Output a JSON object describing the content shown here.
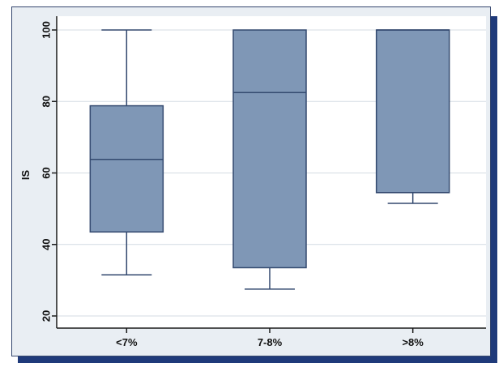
{
  "chart_data": {
    "type": "box",
    "title": "",
    "xlabel": "",
    "ylabel": "IS",
    "ylim": [
      20,
      100
    ],
    "yticks": [
      20,
      40,
      60,
      80,
      100
    ],
    "grid": true,
    "categories": [
      "<7%",
      "7-8%",
      ">8%"
    ],
    "boxes": [
      {
        "category": "<7%",
        "whisker_low": 31.5,
        "q1": 43.5,
        "median": 63.8,
        "q3": 78.8,
        "whisker_high": 100
      },
      {
        "category": "7-8%",
        "whisker_low": 27.5,
        "q1": 33.5,
        "median": 82.5,
        "q3": 100,
        "whisker_high": 100
      },
      {
        "category": ">8%",
        "whisker_low": 51.5,
        "q1": 54.5,
        "median": 100,
        "q3": 100,
        "whisker_high": 100
      }
    ]
  },
  "colors": {
    "box_fill": "#7f97b6",
    "box_stroke": "#33496f",
    "grid": "#d4dbe3",
    "axis": "#1b1b1b",
    "plot_bg": "#ffffff",
    "frame_bg": "#e9eef3",
    "shadow": "#1f3a7a"
  }
}
